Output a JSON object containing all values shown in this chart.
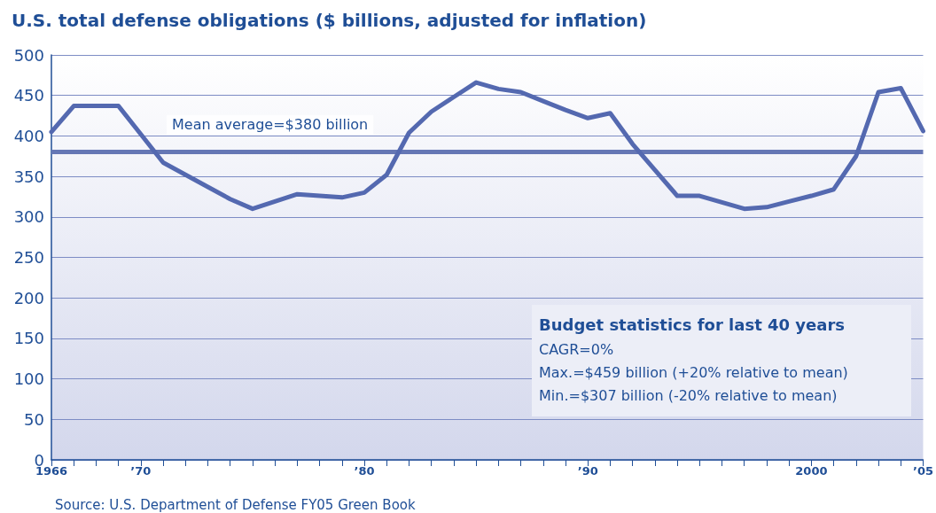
{
  "chart_data": {
    "type": "line",
    "title": "U.S. total defense obligations ($ billions, adjusted for inflation)",
    "x": [
      1966,
      1967,
      1968,
      1969,
      1970,
      1971,
      1972,
      1973,
      1974,
      1975,
      1976,
      1977,
      1978,
      1979,
      1980,
      1981,
      1982,
      1983,
      1984,
      1985,
      1986,
      1987,
      1988,
      1989,
      1990,
      1991,
      1992,
      1993,
      1994,
      1995,
      1996,
      1997,
      1998,
      1999,
      2000,
      2001,
      2002,
      2003,
      2004,
      2005
    ],
    "series": [
      {
        "color": "#5469b0",
        "values": [
          405,
          437,
          437,
          437,
          402,
          367,
          352,
          337,
          322,
          310,
          319,
          328,
          326,
          324,
          330,
          352,
          404,
          430,
          448,
          466,
          458,
          454,
          443,
          432,
          422,
          428,
          390,
          358,
          326,
          326,
          318,
          310,
          312,
          319,
          326,
          334,
          375,
          454,
          459,
          406
        ]
      }
    ],
    "xlim": [
      1966,
      2005
    ],
    "xticks": [
      {
        "value": 1966,
        "label": "1966"
      },
      {
        "value": 1967,
        "label": null
      },
      {
        "value": 1968,
        "label": null
      },
      {
        "value": 1969,
        "label": null
      },
      {
        "value": 1970,
        "label": "’70"
      },
      {
        "value": 1971,
        "label": null
      },
      {
        "value": 1972,
        "label": null
      },
      {
        "value": 1973,
        "label": null
      },
      {
        "value": 1974,
        "label": null
      },
      {
        "value": 1975,
        "label": null
      },
      {
        "value": 1976,
        "label": null
      },
      {
        "value": 1977,
        "label": null
      },
      {
        "value": 1978,
        "label": null
      },
      {
        "value": 1979,
        "label": null
      },
      {
        "value": 1980,
        "label": "’80"
      },
      {
        "value": 1981,
        "label": null
      },
      {
        "value": 1982,
        "label": null
      },
      {
        "value": 1983,
        "label": null
      },
      {
        "value": 1984,
        "label": null
      },
      {
        "value": 1985,
        "label": null
      },
      {
        "value": 1986,
        "label": null
      },
      {
        "value": 1987,
        "label": null
      },
      {
        "value": 1988,
        "label": null
      },
      {
        "value": 1989,
        "label": null
      },
      {
        "value": 1990,
        "label": "’90"
      },
      {
        "value": 1991,
        "label": null
      },
      {
        "value": 1992,
        "label": null
      },
      {
        "value": 1993,
        "label": null
      },
      {
        "value": 1994,
        "label": null
      },
      {
        "value": 1995,
        "label": null
      },
      {
        "value": 1996,
        "label": null
      },
      {
        "value": 1997,
        "label": null
      },
      {
        "value": 1998,
        "label": null
      },
      {
        "value": 1999,
        "label": null
      },
      {
        "value": 2000,
        "label": "2000"
      },
      {
        "value": 2001,
        "label": null
      },
      {
        "value": 2002,
        "label": null
      },
      {
        "value": 2003,
        "label": null
      },
      {
        "value": 2004,
        "label": null
      },
      {
        "value": 2005,
        "label": "’05"
      }
    ],
    "ylim": [
      0,
      500
    ],
    "yticks": [
      0,
      50,
      100,
      150,
      200,
      250,
      300,
      350,
      400,
      450,
      500
    ],
    "grid": "y",
    "marker": "none",
    "line_style": "solid",
    "ref_lines": [
      {
        "axis": "y",
        "value": 380,
        "label": "Mean average=$380 billion",
        "color": "#6577b5"
      }
    ],
    "annotations": [
      "Budget statistics for last 40 years",
      "CAGR=0%",
      "Max.=$459 billion (+20% relative to mean)",
      "Min.=$307 billion (-20% relative to mean)",
      "Source: U.S. Department of Defense FY05 Green Book"
    ]
  }
}
